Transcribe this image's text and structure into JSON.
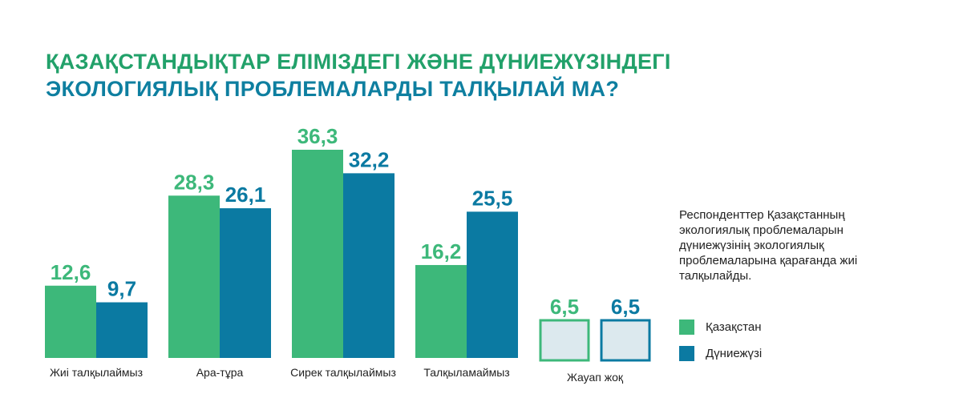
{
  "title_lines": [
    "ҚАЗАҚСТАНДЫҚТАР ЕЛІМІЗДЕГІ ЖӘНЕ ДҮНИЕЖҮЗІНДЕГІ",
    "ЭКОЛОГИЯЛЫҚ ПРОБЛЕМАЛАРДЫ ТАЛҚЫЛАЙ МА?"
  ],
  "note": "Респонденттер Қазақстанның экологиялық проблемаларын дүниежүзінің экологиялық проблемаларына қарағанда жиі талқылайды.",
  "colors": {
    "kazakhstan": "#3db87a",
    "world": "#0b7aa2",
    "title_line1": "#22a16a",
    "title_line2": "#0e7fa0",
    "no_answer_fill": "#dce9ee"
  },
  "chart_data": {
    "type": "bar",
    "categories": [
      "Жиі талқылаймыз",
      "Ара-тұра",
      "Сирек талқылаймыз",
      "Талқыламаймыз",
      "Жауап жоқ"
    ],
    "series": [
      {
        "name": "Қазақстан",
        "values": [
          12.6,
          28.3,
          36.3,
          16.2,
          6.5
        ],
        "labels": [
          "12,6",
          "28,3",
          "36,3",
          "16,2",
          "6,5"
        ]
      },
      {
        "name": "Дүниежүзі",
        "values": [
          9.7,
          26.1,
          32.2,
          25.5,
          6.5
        ],
        "labels": [
          "9,7",
          "26,1",
          "32,2",
          "25,5",
          "6,5"
        ]
      }
    ],
    "ylim": [
      0,
      36.3
    ],
    "grid": false,
    "legend_position": "right",
    "special_category": "Жауап жоқ",
    "special_style": "outlined box, light fill"
  }
}
